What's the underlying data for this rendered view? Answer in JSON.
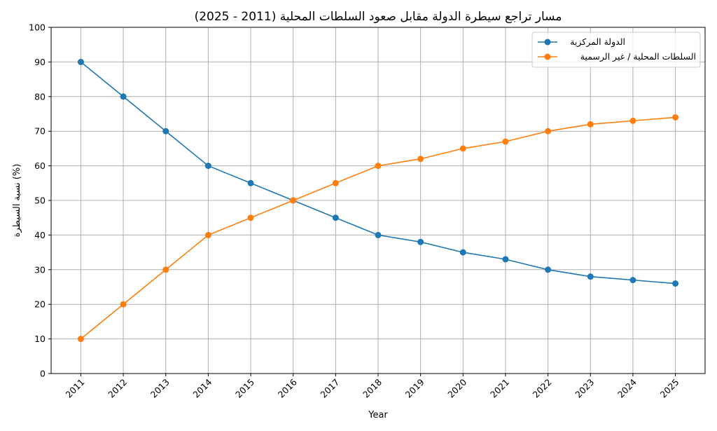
{
  "chart_data": {
    "type": "line",
    "title": "مسار تراجع سيطرة الدولة مقابل صعود السلطات المحلية (2011 - 2025)",
    "xlabel": "Year",
    "ylabel": "نسبة السيطرة (%)",
    "x": [
      2011,
      2012,
      2013,
      2014,
      2015,
      2016,
      2017,
      2018,
      2019,
      2020,
      2021,
      2022,
      2023,
      2024,
      2025
    ],
    "ylim": [
      0,
      100
    ],
    "yticks": [
      0,
      10,
      20,
      30,
      40,
      50,
      60,
      70,
      80,
      90,
      100
    ],
    "grid": true,
    "legend": "top-right",
    "series": [
      {
        "name": "الدولة المركزية",
        "color": "#1f77b4",
        "values": [
          90,
          80,
          70,
          60,
          55,
          50,
          45,
          40,
          38,
          35,
          33,
          30,
          28,
          27,
          26
        ]
      },
      {
        "name": "السلطات المحلية / غير الرسمية",
        "color": "#ff7f0e",
        "values": [
          10,
          20,
          30,
          40,
          45,
          50,
          55,
          60,
          62,
          65,
          67,
          70,
          72,
          73,
          74
        ]
      }
    ]
  }
}
